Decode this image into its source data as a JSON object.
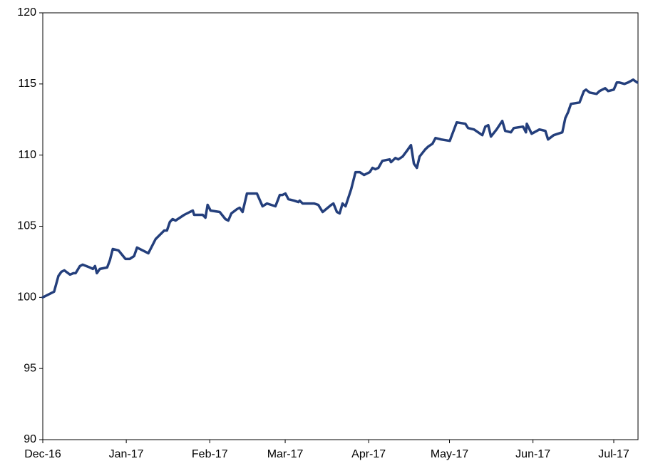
{
  "chart_data": {
    "type": "line",
    "x": [
      0,
      4.2,
      5.8,
      6.9,
      8.0,
      10.1,
      11.4,
      12.2,
      13.8,
      14.8,
      17.5,
      18.6,
      19.4,
      20.1,
      21.2,
      23.9,
      24.9,
      26.0,
      28.1,
      30.7,
      32.3,
      33.9,
      35.0,
      39.2,
      41.9,
      45.1,
      46.1,
      47.2,
      48.2,
      49.3,
      52.5,
      54.6,
      55.7,
      56.2,
      59.4,
      60.4,
      61.2,
      62.3,
      65.7,
      67.8,
      68.9,
      70.0,
      72.1,
      73.1,
      74.2,
      75.8,
      79.5,
      81.6,
      83.2,
      84.8,
      86.4,
      88.0,
      89.0,
      90.1,
      91.2,
      93.3,
      94.9,
      95.4,
      96.5,
      100.7,
      102.3,
      103.9,
      107.1,
      107.9,
      109.2,
      110.2,
      111.3,
      112.4,
      114.5,
      116.1,
      117.7,
      119.3,
      121.4,
      122.4,
      123.5,
      124.6,
      126.1,
      128.8,
      129.3,
      130.9,
      132.0,
      133.6,
      135.2,
      136.7,
      137.8,
      138.9,
      139.9,
      142.0,
      143.1,
      144.7,
      145.8,
      147.9,
      151.1,
      153.7,
      156.9,
      157.9,
      160.1,
      163.2,
      164.3,
      165.4,
      166.4,
      168.5,
      170.6,
      171.7,
      173.8,
      174.9,
      178.3,
      179.4,
      179.7,
      181.5,
      184.4,
      186.6,
      187.6,
      189.7,
      192.9,
      194.0,
      195.0,
      196.1,
      199.3,
      200.9,
      201.7,
      203.0,
      205.6,
      206.7,
      208.8,
      209.9,
      212.0,
      213.1,
      214.1,
      216.0,
      217.3,
      219.2,
      220.7
    ],
    "series": [
      {
        "color": "#243f7c",
        "values": [
          100.0,
          100.4,
          101.5,
          101.8,
          101.9,
          101.6,
          101.7,
          101.7,
          102.2,
          102.3,
          102.1,
          102.0,
          102.2,
          101.7,
          102.0,
          102.1,
          102.6,
          103.4,
          103.3,
          102.7,
          102.7,
          102.9,
          103.5,
          103.1,
          104.1,
          104.7,
          104.7,
          105.3,
          105.5,
          105.4,
          105.8,
          106.0,
          106.1,
          105.8,
          105.8,
          105.6,
          106.5,
          106.1,
          106.0,
          105.5,
          105.4,
          105.9,
          106.2,
          106.3,
          106.0,
          107.3,
          107.3,
          106.4,
          106.6,
          106.5,
          106.4,
          107.2,
          107.2,
          107.3,
          106.9,
          106.8,
          106.7,
          106.8,
          106.6,
          106.6,
          106.5,
          106.0,
          106.5,
          106.6,
          106.0,
          105.9,
          106.6,
          106.4,
          107.6,
          108.8,
          108.8,
          108.6,
          108.8,
          109.1,
          109.0,
          109.1,
          109.6,
          109.7,
          109.5,
          109.8,
          109.7,
          109.9,
          110.3,
          110.7,
          109.4,
          109.1,
          109.9,
          110.4,
          110.6,
          110.8,
          111.2,
          111.1,
          111.0,
          112.3,
          112.2,
          111.9,
          111.8,
          111.4,
          112.0,
          112.1,
          111.3,
          111.8,
          112.4,
          111.7,
          111.6,
          111.9,
          112.0,
          111.6,
          112.2,
          111.5,
          111.8,
          111.7,
          111.1,
          111.4,
          111.6,
          112.6,
          113.0,
          113.6,
          113.7,
          114.5,
          114.6,
          114.4,
          114.3,
          114.5,
          114.7,
          114.5,
          114.6,
          115.1,
          115.1,
          115.0,
          115.1,
          115.3,
          115.1
        ]
      }
    ],
    "xlim": [
      0,
      221
    ],
    "xticks": [
      {
        "value": 0,
        "label": "Dec-16"
      },
      {
        "value": 31,
        "label": "Jan-17"
      },
      {
        "value": 62,
        "label": "Feb-17"
      },
      {
        "value": 90,
        "label": "Mar-17"
      },
      {
        "value": 121,
        "label": "Apr-17"
      },
      {
        "value": 151,
        "label": "May-17"
      },
      {
        "value": 182,
        "label": "Jun-17"
      },
      {
        "value": 212,
        "label": "Jul-17"
      }
    ],
    "ylim": [
      90,
      120
    ],
    "yticks": [
      90,
      95,
      100,
      105,
      110,
      115,
      120
    ],
    "grid": false
  }
}
